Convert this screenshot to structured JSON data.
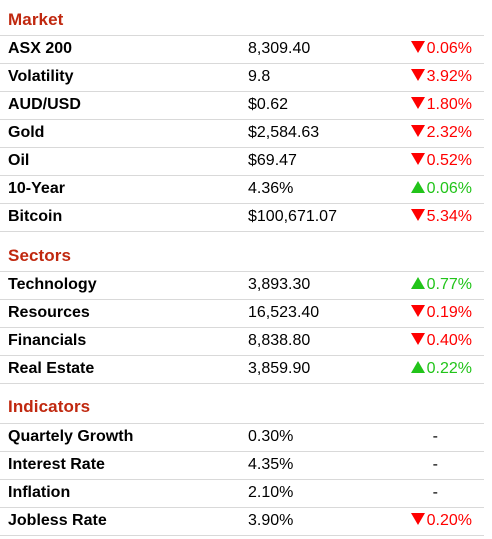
{
  "colors": {
    "heading": "#c0280f",
    "down": "#ff0000",
    "up": "#22c41a",
    "divider": "#d9d9d9"
  },
  "sections": [
    {
      "title": "Market",
      "rows": [
        {
          "name": "ASX 200",
          "value": "8,309.40",
          "change": "0.06%",
          "direction": "down"
        },
        {
          "name": "Volatility",
          "value": "9.8",
          "change": "3.92%",
          "direction": "down"
        },
        {
          "name": "AUD/USD",
          "value": "$0.62",
          "change": "1.80%",
          "direction": "down"
        },
        {
          "name": "Gold",
          "value": "$2,584.63",
          "change": "2.32%",
          "direction": "down"
        },
        {
          "name": "Oil",
          "value": "$69.47",
          "change": "0.52%",
          "direction": "down"
        },
        {
          "name": "10-Year",
          "value": "4.36%",
          "change": "0.06%",
          "direction": "up"
        },
        {
          "name": "Bitcoin",
          "value": "$100,671.07",
          "change": "5.34%",
          "direction": "down"
        }
      ]
    },
    {
      "title": "Sectors",
      "rows": [
        {
          "name": "Technology",
          "value": "3,893.30",
          "change": "0.77%",
          "direction": "up"
        },
        {
          "name": "Resources",
          "value": "16,523.40",
          "change": "0.19%",
          "direction": "down"
        },
        {
          "name": "Financials",
          "value": "8,838.80",
          "change": "0.40%",
          "direction": "down"
        },
        {
          "name": "Real Estate",
          "value": "3,859.90",
          "change": "0.22%",
          "direction": "up"
        }
      ]
    },
    {
      "title": "Indicators",
      "rows": [
        {
          "name": "Quartely Growth",
          "value": "0.30%",
          "change": "-",
          "direction": "none"
        },
        {
          "name": "Interest Rate",
          "value": "4.35%",
          "change": "-",
          "direction": "none"
        },
        {
          "name": "Inflation",
          "value": "2.10%",
          "change": "-",
          "direction": "none"
        },
        {
          "name": "Jobless Rate",
          "value": "3.90%",
          "change": "0.20%",
          "direction": "down"
        }
      ]
    }
  ]
}
